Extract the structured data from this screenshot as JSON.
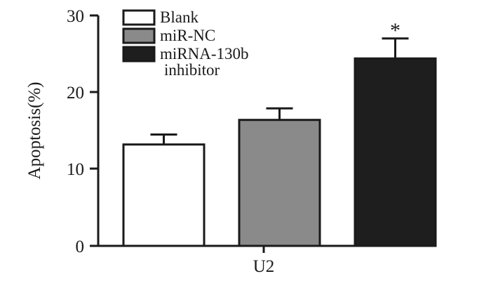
{
  "chart_data": {
    "type": "bar",
    "categories": [
      "U2"
    ],
    "series": [
      {
        "name": "Blank",
        "values": [
          13.2
        ],
        "error": [
          1.3
        ],
        "color": "#ffffff"
      },
      {
        "name": "miR-NC",
        "values": [
          16.4
        ],
        "error": [
          1.5
        ],
        "color": "#8a8a8a"
      },
      {
        "name": "miRNA-130b inhibitor",
        "values": [
          24.4
        ],
        "error": [
          2.6
        ],
        "color": "#1e1e1e"
      }
    ],
    "significance": [
      "",
      "",
      "*"
    ],
    "ylabel": "Apoptosis(%)",
    "xlabel": "",
    "ylim": [
      0,
      30
    ],
    "yticks": [
      0,
      10,
      20,
      30
    ],
    "legend": {
      "position": "top-left",
      "entries": [
        "Blank",
        "miR-NC",
        "miRNA-130b",
        "inhibitor"
      ]
    },
    "grid": false
  }
}
